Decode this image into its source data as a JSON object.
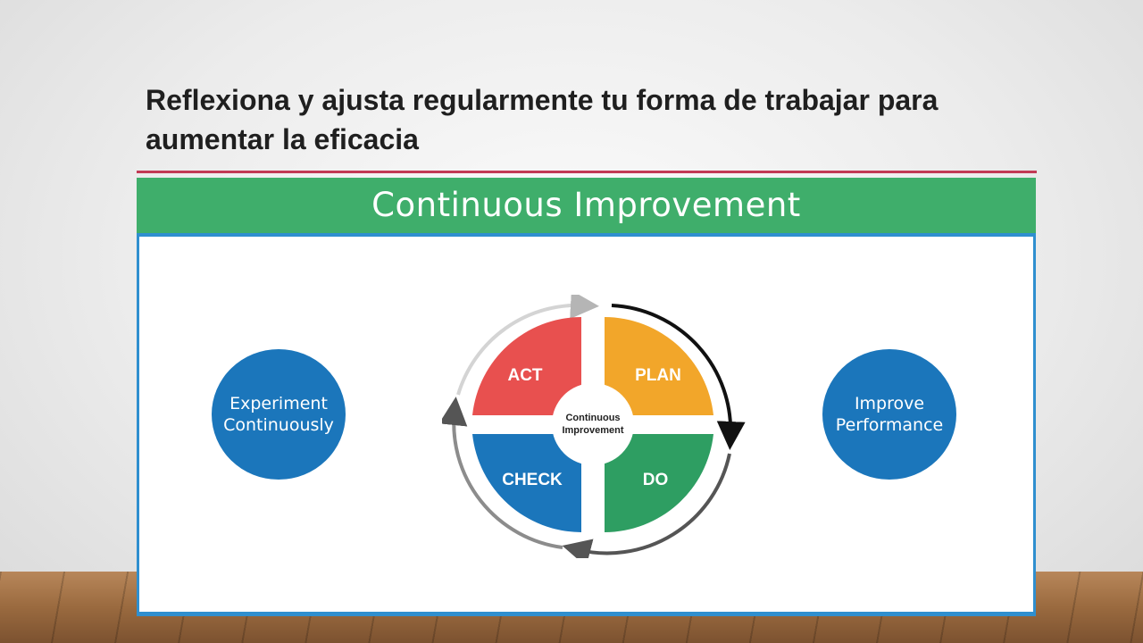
{
  "slide": {
    "title": "Reflexiona y ajusta regularmente tu forma de trabajar para aumentar la eficacia"
  },
  "diagram": {
    "banner": "Continuous Improvement",
    "left_bubble": "Experiment\nContinuously",
    "right_bubble": "Improve\nPerformance",
    "center_label_line1": "Continuous",
    "center_label_line2": "Improvement",
    "quadrants": [
      {
        "label": "ACT",
        "color": "#e8504f"
      },
      {
        "label": "PLAN",
        "color": "#f2a62a"
      },
      {
        "label": "DO",
        "color": "#2e9e62"
      },
      {
        "label": "CHECK",
        "color": "#1b76bb"
      }
    ]
  },
  "colors": {
    "banner": "#3fae6b",
    "frame": "#2f8fcf",
    "bubble": "#1b76bb",
    "rule": "#c23a55"
  }
}
